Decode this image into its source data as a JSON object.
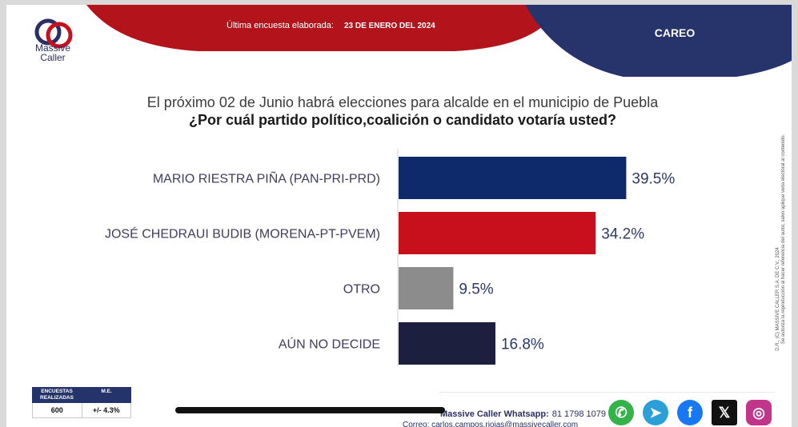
{
  "header": {
    "logo_line1": "Massive",
    "logo_line2": "Caller",
    "survey_label": "Última encuesta elaborada:",
    "survey_date": "23 DE ENERO DEL 2024",
    "section": "CAREO"
  },
  "question": {
    "intro": "El próximo 02 de Junio habrá elecciones para alcalde en el municipio de Puebla",
    "main": "¿Por cuál partido político,coalición o candidato votaría usted?"
  },
  "chart_data": {
    "type": "bar",
    "orientation": "horizontal",
    "categories": [
      "MARIO RIESTRA PIÑA (PAN-PRI-PRD)",
      "JOSÉ CHEDRAUI BUDIB (MORENA-PT-PVEM)",
      "OTRO",
      "AÚN NO DECIDE"
    ],
    "values": [
      39.5,
      34.2,
      9.5,
      16.8
    ],
    "value_labels": [
      "39.5%",
      "34.2%",
      "9.5%",
      "16.8%"
    ],
    "colors": [
      "#0f2a6a",
      "#c8101c",
      "#8c8c8c",
      "#1d1f3f"
    ],
    "xlim": [
      0,
      50
    ],
    "title": "",
    "xlabel": "",
    "ylabel": "",
    "grid": false
  },
  "side_note": {
    "line1": "D.R., (C) MASSIVE CALLER S.A. DE C.V., 2024",
    "line2": "Se autoriza la reproducción al hacer referencia del autor, salvo aplique veda electoral al contenido."
  },
  "stats": {
    "col1_header": "ENCUESTAS REALIZADAS",
    "col2_header": "M.E.",
    "col1_value": "600",
    "col2_value": "+/- 4.3%"
  },
  "contact": {
    "whatsapp_label": "Massive Caller Whatsapp:",
    "whatsapp_number": "81 1798 1079",
    "email_line": "Correo: carlos.campos.riojas@massivecaller.com"
  },
  "icons": [
    "whatsapp-icon",
    "telegram-icon",
    "facebook-icon",
    "x-icon",
    "instagram-icon"
  ],
  "theme": {
    "red": "#b3141c",
    "navy": "#27336b"
  }
}
